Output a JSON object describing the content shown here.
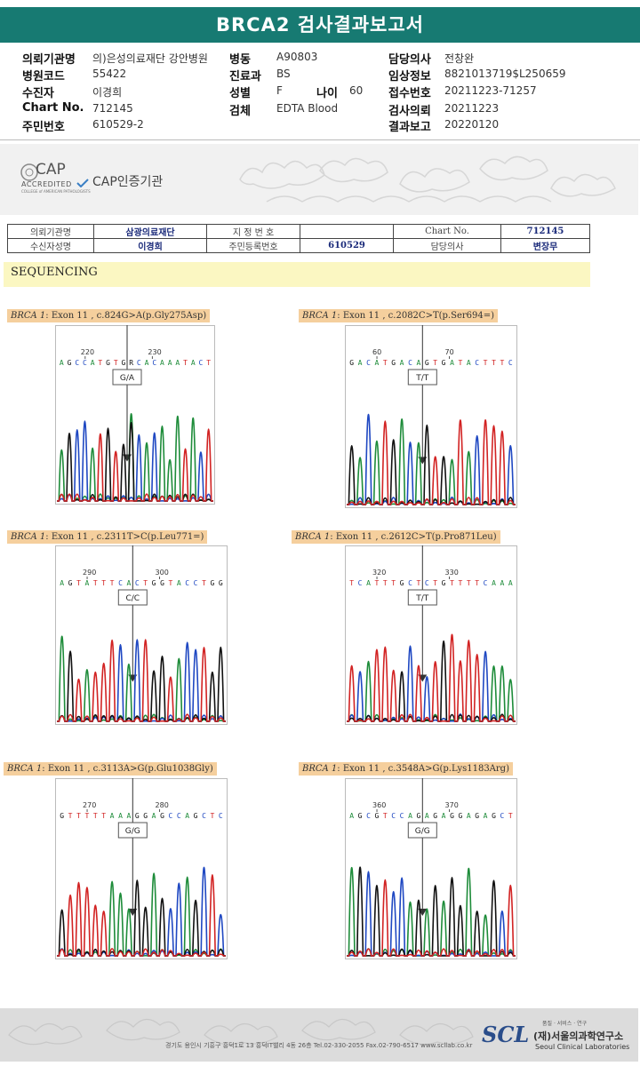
{
  "report": {
    "title": "BRCA2 검사결과보고서"
  },
  "patient_info": {
    "col1": [
      {
        "label": "의뢰기관명",
        "value": "의)은성의료재단 강안병원"
      },
      {
        "label": "병원코드",
        "value": "55422"
      },
      {
        "label": "수진자",
        "value": "이경희"
      },
      {
        "label": "Chart No.",
        "value": "712145"
      },
      {
        "label": "주민번호",
        "value": "610529-2"
      }
    ],
    "col2": [
      {
        "label": "병동",
        "value": "A90803"
      },
      {
        "label": "진료과",
        "value": "BS"
      },
      {
        "label": "성별",
        "value": "F"
      },
      {
        "label": "검체",
        "value": "EDTA Blood"
      }
    ],
    "age": {
      "label": "나이",
      "value": "60"
    },
    "col3": [
      {
        "label": "담당의사",
        "value": "전창완"
      },
      {
        "label": "임상정보",
        "value": "8821013719$L250659"
      },
      {
        "label": "접수번호",
        "value": "20211223-71257"
      },
      {
        "label": "검사의뢰",
        "value": "20211223"
      },
      {
        "label": "결과보고",
        "value": "20220120"
      }
    ]
  },
  "cap": {
    "logo_text": "CAP",
    "accredited": "ACCREDITED",
    "small": "COLLEGE of AMERICAN PATHOLOGISTS",
    "label": "CAP인증기관"
  },
  "info_table": {
    "row1": [
      {
        "label": "의뢰기관명",
        "value": "삼광의료재단"
      },
      {
        "label": "지 정 번 호",
        "value": ""
      },
      {
        "label": "Chart No.",
        "value": "712145"
      }
    ],
    "row2": [
      {
        "label": "수신자성명",
        "value": "이경희"
      },
      {
        "label": "주민등록번호",
        "value": "610529"
      },
      {
        "label": "담당의사",
        "value": "변장무"
      }
    ]
  },
  "section": {
    "title": "SEQUENCING"
  },
  "variants": [
    {
      "gene": "BRCA 1",
      "detail": ": Exon 11 , c.824G>A(p.Gly275Asp)",
      "ticks": [
        "220",
        "230"
      ],
      "bases": "AGCCATGTGRCACAAATACT",
      "genotype": "G/A",
      "seed": 3
    },
    {
      "gene": "BRCA 1",
      "detail": ": Exon 11 , c.2082C>T(p.Ser694=)",
      "ticks": [
        "60",
        "70"
      ],
      "bases": "GACATGACAGTGATACTTTC",
      "genotype": "T/T",
      "seed": 7
    },
    {
      "gene": "BRCA 1",
      "detail": ": Exon 11 , c.2311T>C(p.Leu771=)",
      "ticks": [
        "290",
        "300"
      ],
      "bases": "AGTATTTCACTGGTACCTGG",
      "genotype": "C/C",
      "seed": 11
    },
    {
      "gene": "BRCA 1",
      "detail": ": Exon 11 , c.2612C>T(p.Pro871Leu)",
      "ticks": [
        "320",
        "330"
      ],
      "bases": "TCATTTGCTCTGTTTTCAAA",
      "genotype": "T/T",
      "seed": 17
    },
    {
      "gene": "BRCA 1",
      "detail": ": Exon 11 , c.3113A>G(p.Glu1038Gly)",
      "ticks": [
        "270",
        "280"
      ],
      "bases": "GTTTTTAAAGGAGCCAGCTC",
      "genotype": "G/G",
      "seed": 23
    },
    {
      "gene": "BRCA 1",
      "detail": ": Exon 11 , c.3548A>G(p.Lys1183Arg)",
      "ticks": [
        "360",
        "370"
      ],
      "bases": "AGCGTCCAGAGAGGAGAGCT",
      "genotype": "G/G",
      "seed": 29
    }
  ],
  "base_colors": {
    "A": "#1e8c3a",
    "C": "#1f48c2",
    "G": "#111111",
    "T": "#d22323",
    "R": "#111111"
  },
  "footer": {
    "address": "경기도 용인시 기흥구 흥덕1로 13 흥덕IT밸리 4동 26층  Tel.02-330-2055  Fax.02-790-6517  www.scllab.co.kr",
    "tagline": "품질 · 서비스 · 연구",
    "logo": "SCL",
    "name_ko": "(재)서울의과학연구소",
    "name_en": "Seoul Clinical Laboratories"
  }
}
